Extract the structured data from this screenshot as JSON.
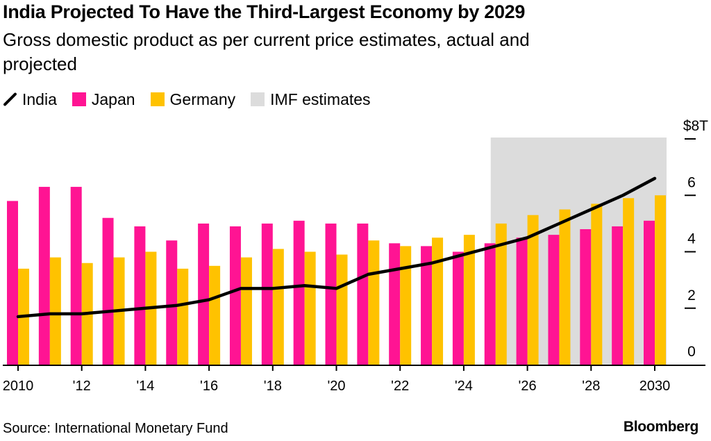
{
  "title": "India Projected To Have the Third-Largest Economy by 2029",
  "subtitle": "Gross domestic product as per current price estimates, actual and projected",
  "legend": {
    "india": "India",
    "japan": "Japan",
    "germany": "Germany",
    "imf": "IMF estimates"
  },
  "colors": {
    "india": "#000000",
    "japan": "#ff1493",
    "germany": "#ffc200",
    "imf_shade": "#dcdcdc",
    "axis": "#000000"
  },
  "source": "Source: International Monetary Fund",
  "brand": "Bloomberg",
  "chart_data": {
    "type": "bar",
    "categories": [
      2010,
      2011,
      2012,
      2013,
      2014,
      2015,
      2016,
      2017,
      2018,
      2019,
      2020,
      2021,
      2022,
      2023,
      2024,
      2025,
      2026,
      2027,
      2028,
      2029,
      2030
    ],
    "series": [
      {
        "name": "Japan",
        "type": "bar",
        "values": [
          5.8,
          6.3,
          6.3,
          5.2,
          4.9,
          4.4,
          5.0,
          4.9,
          5.0,
          5.1,
          5.0,
          5.0,
          4.3,
          4.2,
          4.0,
          4.3,
          4.5,
          4.6,
          4.8,
          4.9,
          5.1
        ]
      },
      {
        "name": "Germany",
        "type": "bar",
        "values": [
          3.4,
          3.8,
          3.6,
          3.8,
          4.0,
          3.4,
          3.5,
          3.8,
          4.1,
          4.0,
          3.9,
          4.4,
          4.2,
          4.5,
          4.6,
          5.0,
          5.3,
          5.5,
          5.7,
          5.9,
          6.0
        ]
      },
      {
        "name": "India",
        "type": "line",
        "values": [
          1.7,
          1.8,
          1.8,
          1.9,
          2.0,
          2.1,
          2.3,
          2.7,
          2.7,
          2.8,
          2.7,
          3.2,
          3.4,
          3.6,
          3.9,
          4.2,
          4.5,
          5.0,
          5.5,
          6.0,
          6.6
        ]
      }
    ],
    "x_tick_labels": [
      "2010",
      "'12",
      "'14",
      "'16",
      "'18",
      "'20",
      "'22",
      "'24",
      "'26",
      "'28",
      "2030"
    ],
    "y_tick_labels": [
      "0",
      "2",
      "4",
      "6",
      "$8T"
    ],
    "ylim": [
      0,
      8
    ],
    "shaded_region": {
      "label": "IMF estimates",
      "x_from": 2025,
      "x_to": 2030
    },
    "ylabel_position": "right",
    "grid": false,
    "legend_position": "top-left"
  }
}
